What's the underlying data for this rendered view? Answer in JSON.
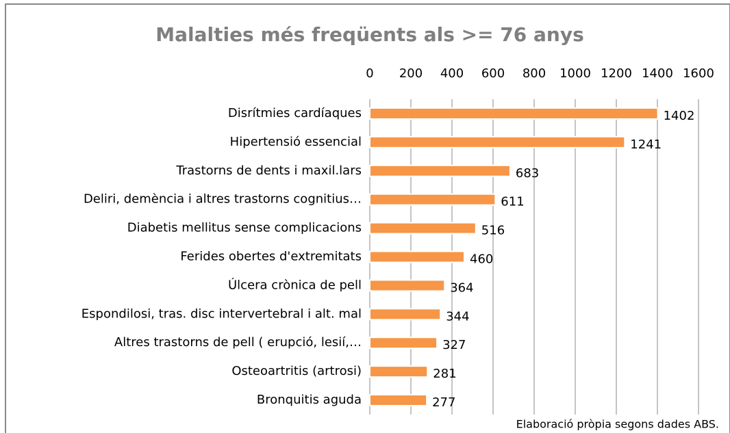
{
  "chart_data": {
    "type": "bar",
    "orientation": "horizontal",
    "title": "Malalties més freqüents als >= 76 anys",
    "categories": [
      "Disrítmies cardíaques",
      "Hipertensió essencial",
      "Trastorns de dents i maxil.lars",
      "Deliri, demència i altres trastorns cognitius…",
      "Diabetis mellitus sense complicacions",
      "Ferides obertes d'extremitats",
      "Úlcera crònica de pell",
      "Espondilosi, tras. disc intervertebral i alt. mal",
      "Altres trastorns de pell ( erupció, lesií,…",
      "Osteoartritis (artrosi)",
      "Bronquitis aguda"
    ],
    "values": [
      1402,
      1241,
      683,
      611,
      516,
      460,
      364,
      344,
      327,
      281,
      277
    ],
    "color": "#f79646",
    "xlim": [
      0,
      1600
    ],
    "xticks": [
      0,
      200,
      400,
      600,
      800,
      1000,
      1200,
      1400,
      1600
    ],
    "grid": true,
    "annotation": "Elaboració pròpia segons dades ABS."
  }
}
